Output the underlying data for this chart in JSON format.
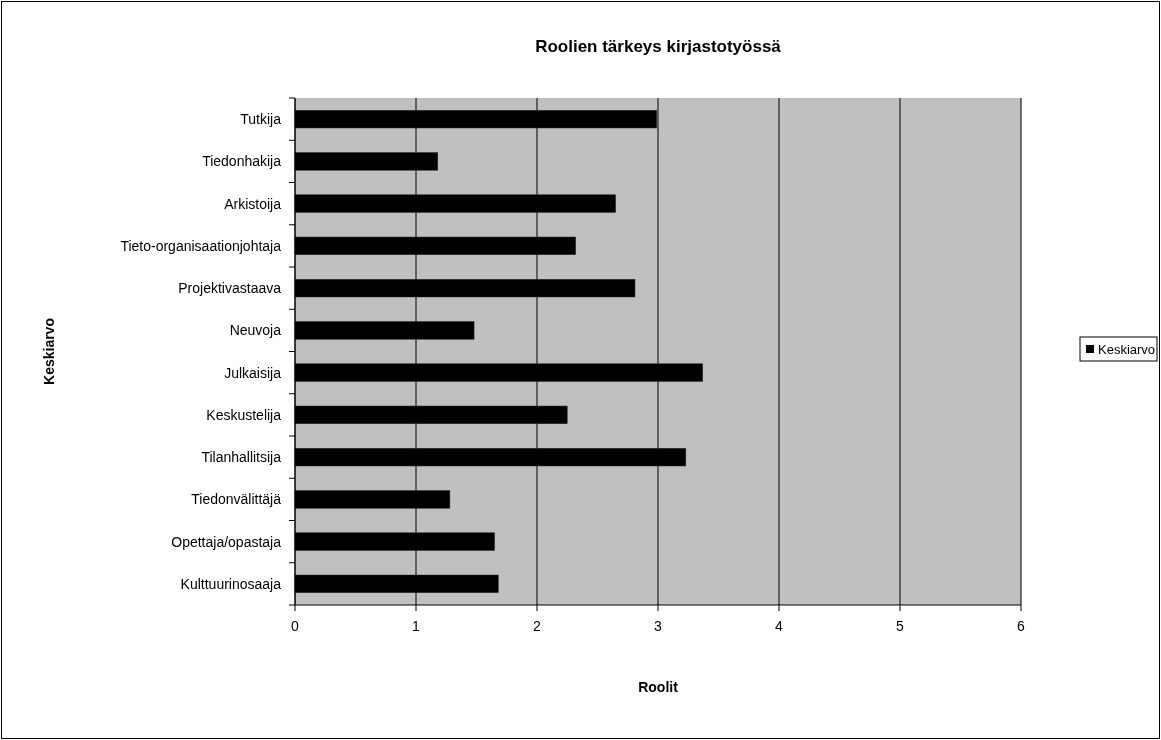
{
  "chart_data": {
    "type": "bar",
    "orientation": "horizontal",
    "title": "Roolien tärkeys kirjastotyössä",
    "xlabel": "Roolit",
    "ylabel": "Keskiarvo",
    "categories": [
      "Tutkija",
      "Tiedonhakija",
      "Arkistoija",
      "Tieto-organisaationjohtaja",
      "Projektivastaava",
      "Neuvoja",
      "Julkaisija",
      "Keskustelija",
      "Tilanhallitsija",
      "Tiedonvälittäjä",
      "Opettaja/opastaja",
      "Kulttuurinosaaja"
    ],
    "series": [
      {
        "name": "Keskiarvo",
        "color": "#000000",
        "values": [
          2.99,
          1.18,
          2.65,
          2.32,
          2.81,
          1.48,
          3.37,
          2.25,
          3.23,
          1.28,
          1.65,
          1.68
        ]
      }
    ],
    "xlim": [
      0,
      6
    ],
    "xticks": [
      0,
      1,
      2,
      3,
      4,
      5,
      6
    ],
    "grid": "x",
    "legend": "right"
  }
}
